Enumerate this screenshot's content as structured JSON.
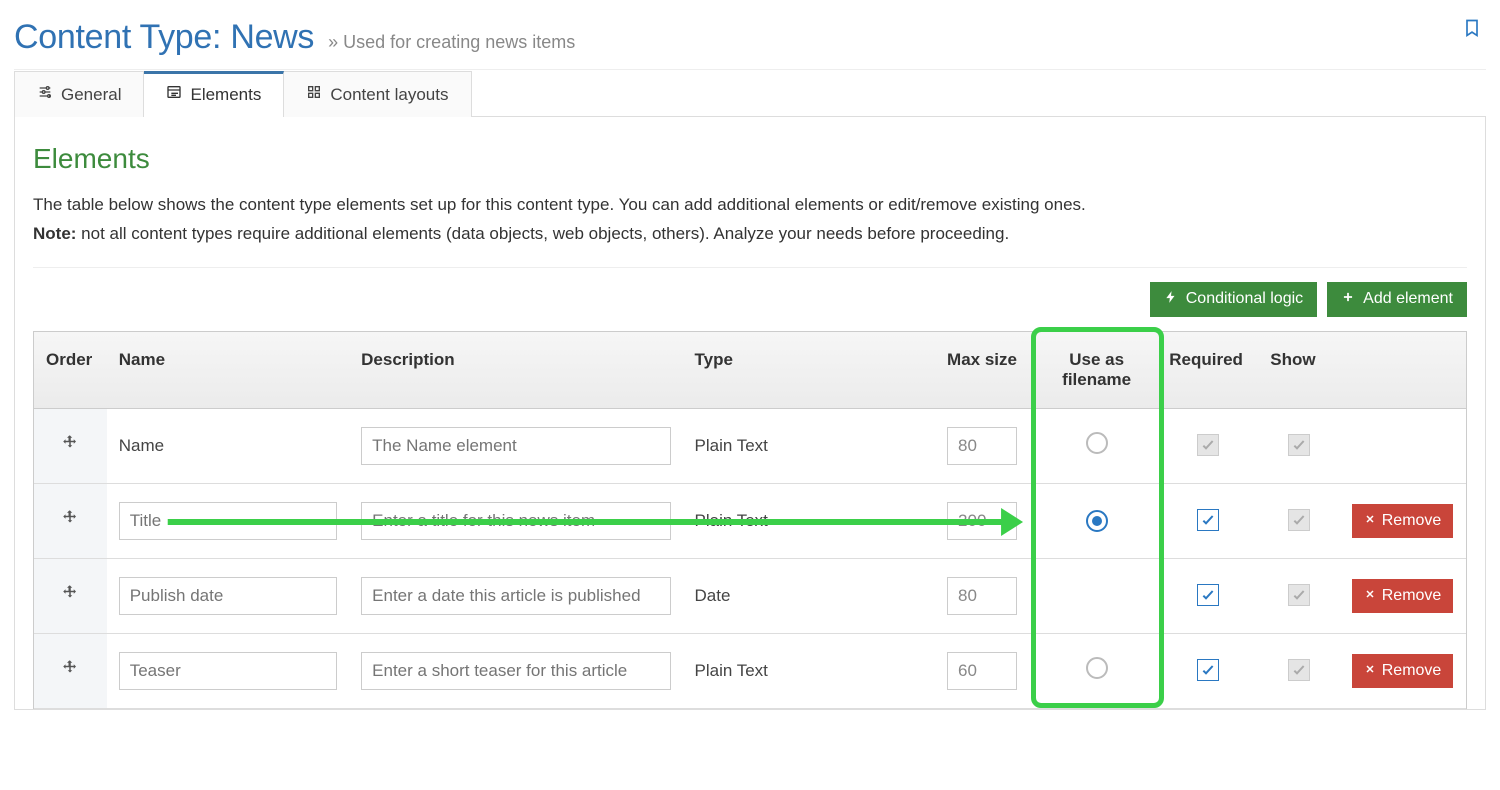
{
  "header": {
    "title": "Content Type: News",
    "subtitle": "Used for creating news items"
  },
  "tabs": {
    "general_label": "General",
    "elements_label": "Elements",
    "layouts_label": "Content layouts",
    "active_index": 1
  },
  "panel": {
    "heading": "Elements",
    "intro_text": "The table below shows the content type elements set up for this content type. You can add additional elements or edit/remove existing ones.",
    "note_label": "Note:",
    "note_text": " not all content types require additional elements (data objects, web objects, others). Analyze your needs before proceeding."
  },
  "actions": {
    "conditional_logic_label": "Conditional logic",
    "add_element_label": "Add element"
  },
  "table": {
    "columns": {
      "order": "Order",
      "name": "Name",
      "description": "Description",
      "type": "Type",
      "max_size": "Max size",
      "use_as_filename": "Use as filename",
      "required": "Required",
      "show": "Show"
    },
    "rows": [
      {
        "name_is_input": false,
        "name_text": "Name",
        "name_placeholder": "",
        "description_placeholder": "The Name element",
        "type": "Plain Text",
        "max_size": "80",
        "use_as_filename": "empty",
        "required": "disabled",
        "show": "disabled",
        "removable": false
      },
      {
        "name_is_input": true,
        "name_text": "",
        "name_placeholder": "Title",
        "description_placeholder": "Enter a title for this news item",
        "type": "Plain Text",
        "max_size": "200",
        "use_as_filename": "selected",
        "required": "active",
        "show": "disabled",
        "removable": true
      },
      {
        "name_is_input": true,
        "name_text": "",
        "name_placeholder": "Publish date",
        "description_placeholder": "Enter a date this article is published",
        "type": "Date",
        "max_size": "80",
        "use_as_filename": "none",
        "required": "active",
        "show": "disabled",
        "removable": true
      },
      {
        "name_is_input": true,
        "name_text": "",
        "name_placeholder": "Teaser",
        "description_placeholder": "Enter a short teaser for this article",
        "type": "Plain Text",
        "max_size": "60",
        "use_as_filename": "empty",
        "required": "active",
        "show": "disabled",
        "removable": true
      }
    ],
    "remove_label": "Remove"
  },
  "annotation": {
    "highlight_column": "use_as_filename",
    "arrow_from_row_index": 1,
    "colors": {
      "highlight": "#3bcf49"
    }
  },
  "colors": {
    "heading_blue": "#3072b3",
    "heading_green": "#3d8b3d",
    "button_green": "#3d8b3d",
    "button_red": "#c9453a",
    "link_blue": "#2a78c2"
  }
}
